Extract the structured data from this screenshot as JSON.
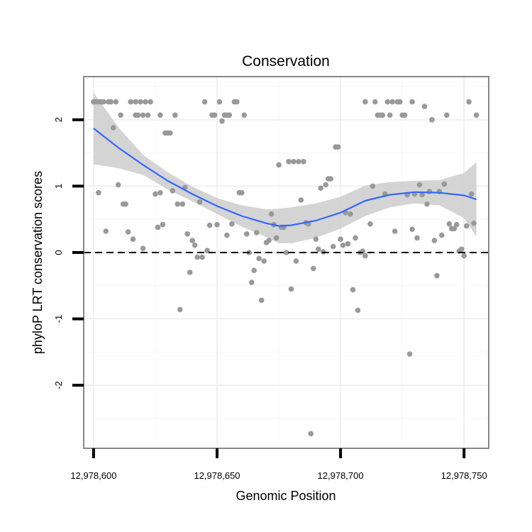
{
  "chart_data": {
    "type": "scatter",
    "title": "Conservation",
    "xlabel": "Genomic Position",
    "ylabel": "phyloP LRT conservation scores",
    "xlim": [
      12978596,
      12978760
    ],
    "ylim": [
      -2.95,
      2.65
    ],
    "x_ticks": [
      12978600,
      12978650,
      12978700,
      12978750
    ],
    "x_tick_labels": [
      "12,978,600",
      "12,978,650",
      "12,978,700",
      "12,978,750"
    ],
    "y_ticks": [
      -2,
      -1,
      0,
      1,
      2
    ],
    "y_tick_labels": [
      "-2",
      "-1",
      "0",
      "1",
      "2"
    ],
    "reference_line": {
      "y": 0,
      "style": "dashed"
    },
    "grid": true,
    "colors": {
      "points": "#999999",
      "smooth_line": "#3366ff",
      "ribbon": "#cccccc",
      "panel_border": "#888888"
    },
    "points": [
      {
        "x": 12978600,
        "y": 2.27
      },
      {
        "x": 12978601,
        "y": 2.27
      },
      {
        "x": 12978602,
        "y": 2.27
      },
      {
        "x": 12978602,
        "y": 0.9
      },
      {
        "x": 12978603,
        "y": 2.27
      },
      {
        "x": 12978604,
        "y": 2.27
      },
      {
        "x": 12978605,
        "y": 0.32
      },
      {
        "x": 12978606,
        "y": 2.27
      },
      {
        "x": 12978607,
        "y": 2.27
      },
      {
        "x": 12978608,
        "y": 1.88
      },
      {
        "x": 12978609,
        "y": 2.27
      },
      {
        "x": 12978610,
        "y": 1.02
      },
      {
        "x": 12978611,
        "y": 2.07
      },
      {
        "x": 12978612,
        "y": 0.73
      },
      {
        "x": 12978613,
        "y": 0.73
      },
      {
        "x": 12978614,
        "y": 0.31
      },
      {
        "x": 12978615,
        "y": 2.27
      },
      {
        "x": 12978616,
        "y": 0.2
      },
      {
        "x": 12978617,
        "y": 2.07
      },
      {
        "x": 12978617,
        "y": 2.27
      },
      {
        "x": 12978618,
        "y": 2.07
      },
      {
        "x": 12978619,
        "y": 2.27
      },
      {
        "x": 12978620,
        "y": 0.06
      },
      {
        "x": 12978620,
        "y": 2.07
      },
      {
        "x": 12978621,
        "y": 2.27
      },
      {
        "x": 12978622,
        "y": 2.07
      },
      {
        "x": 12978623,
        "y": 2.27
      },
      {
        "x": 12978625,
        "y": 0.88
      },
      {
        "x": 12978626,
        "y": 0.38
      },
      {
        "x": 12978627,
        "y": 2.07
      },
      {
        "x": 12978627,
        "y": 0.9
      },
      {
        "x": 12978628,
        "y": 0.42
      },
      {
        "x": 12978629,
        "y": 1.8
      },
      {
        "x": 12978630,
        "y": 1.8
      },
      {
        "x": 12978631,
        "y": 1.8
      },
      {
        "x": 12978632,
        "y": 0.93
      },
      {
        "x": 12978633,
        "y": 2.07
      },
      {
        "x": 12978634,
        "y": 0.73
      },
      {
        "x": 12978635,
        "y": -0.86
      },
      {
        "x": 12978636,
        "y": 0.73
      },
      {
        "x": 12978637,
        "y": 0.98
      },
      {
        "x": 12978638,
        "y": 0.28
      },
      {
        "x": 12978639,
        "y": -0.3
      },
      {
        "x": 12978640,
        "y": 0.18
      },
      {
        "x": 12978641,
        "y": 0.11
      },
      {
        "x": 12978642,
        "y": -0.07
      },
      {
        "x": 12978643,
        "y": 0.76
      },
      {
        "x": 12978644,
        "y": -0.07
      },
      {
        "x": 12978645,
        "y": 2.27
      },
      {
        "x": 12978646,
        "y": 0.03
      },
      {
        "x": 12978647,
        "y": 0.41
      },
      {
        "x": 12978648,
        "y": 2.07
      },
      {
        "x": 12978649,
        "y": 2.07
      },
      {
        "x": 12978650,
        "y": 0.42
      },
      {
        "x": 12978651,
        "y": 2.27
      },
      {
        "x": 12978652,
        "y": 1.98
      },
      {
        "x": 12978653,
        "y": 2.07
      },
      {
        "x": 12978654,
        "y": 2.07
      },
      {
        "x": 12978654,
        "y": 0.26
      },
      {
        "x": 12978655,
        "y": 2.07
      },
      {
        "x": 12978656,
        "y": 0.43
      },
      {
        "x": 12978657,
        "y": 2.27
      },
      {
        "x": 12978658,
        "y": 2.27
      },
      {
        "x": 12978659,
        "y": 0.9
      },
      {
        "x": 12978660,
        "y": 0.9
      },
      {
        "x": 12978661,
        "y": 2.07
      },
      {
        "x": 12978662,
        "y": 0.28
      },
      {
        "x": 12978663,
        "y": 0.0
      },
      {
        "x": 12978664,
        "y": -0.45
      },
      {
        "x": 12978665,
        "y": -0.27
      },
      {
        "x": 12978666,
        "y": 0.3
      },
      {
        "x": 12978667,
        "y": -0.09
      },
      {
        "x": 12978668,
        "y": -0.72
      },
      {
        "x": 12978669,
        "y": -0.13
      },
      {
        "x": 12978670,
        "y": 0.15
      },
      {
        "x": 12978671,
        "y": 0.18
      },
      {
        "x": 12978672,
        "y": 0.58
      },
      {
        "x": 12978673,
        "y": 0.42
      },
      {
        "x": 12978674,
        "y": 0.22
      },
      {
        "x": 12978675,
        "y": 1.32
      },
      {
        "x": 12978676,
        "y": 0.38
      },
      {
        "x": 12978677,
        "y": 0.38
      },
      {
        "x": 12978678,
        "y": 0.0
      },
      {
        "x": 12978679,
        "y": 1.37
      },
      {
        "x": 12978680,
        "y": -0.55
      },
      {
        "x": 12978681,
        "y": 1.37
      },
      {
        "x": 12978682,
        "y": -0.13
      },
      {
        "x": 12978683,
        "y": 1.37
      },
      {
        "x": 12978684,
        "y": 0.79
      },
      {
        "x": 12978685,
        "y": 1.37
      },
      {
        "x": 12978686,
        "y": 0.45
      },
      {
        "x": 12978687,
        "y": 0.43
      },
      {
        "x": 12978688,
        "y": -2.73
      },
      {
        "x": 12978689,
        "y": -0.24
      },
      {
        "x": 12978690,
        "y": 0.2
      },
      {
        "x": 12978691,
        "y": 0.05
      },
      {
        "x": 12978692,
        "y": 0.97
      },
      {
        "x": 12978693,
        "y": 0.01
      },
      {
        "x": 12978694,
        "y": 1.02
      },
      {
        "x": 12978695,
        "y": 1.11
      },
      {
        "x": 12978696,
        "y": 1.11
      },
      {
        "x": 12978697,
        "y": 0.09
      },
      {
        "x": 12978698,
        "y": 1.59
      },
      {
        "x": 12978699,
        "y": 1.59
      },
      {
        "x": 12978700,
        "y": 0.2
      },
      {
        "x": 12978701,
        "y": 0.11
      },
      {
        "x": 12978702,
        "y": 0.6
      },
      {
        "x": 12978703,
        "y": 0.13
      },
      {
        "x": 12978704,
        "y": 0.58
      },
      {
        "x": 12978705,
        "y": -0.56
      },
      {
        "x": 12978706,
        "y": 0.22
      },
      {
        "x": 12978707,
        "y": -0.87
      },
      {
        "x": 12978708,
        "y": 0.0
      },
      {
        "x": 12978709,
        "y": 0.02
      },
      {
        "x": 12978710,
        "y": -0.05
      },
      {
        "x": 12978710,
        "y": 2.27
      },
      {
        "x": 12978712,
        "y": 0.43
      },
      {
        "x": 12978713,
        "y": 1.0
      },
      {
        "x": 12978714,
        "y": 2.27
      },
      {
        "x": 12978715,
        "y": 2.07
      },
      {
        "x": 12978716,
        "y": 2.07
      },
      {
        "x": 12978717,
        "y": 2.07
      },
      {
        "x": 12978718,
        "y": 0.88
      },
      {
        "x": 12978719,
        "y": 2.27
      },
      {
        "x": 12978720,
        "y": 2.07
      },
      {
        "x": 12978721,
        "y": 2.27
      },
      {
        "x": 12978722,
        "y": 0.32
      },
      {
        "x": 12978723,
        "y": 2.27
      },
      {
        "x": 12978724,
        "y": 2.27
      },
      {
        "x": 12978725,
        "y": 2.07
      },
      {
        "x": 12978726,
        "y": 2.07
      },
      {
        "x": 12978727,
        "y": 0.87
      },
      {
        "x": 12978728,
        "y": -1.53
      },
      {
        "x": 12978729,
        "y": 0.35
      },
      {
        "x": 12978729,
        "y": 2.27
      },
      {
        "x": 12978730,
        "y": 0.88
      },
      {
        "x": 12978731,
        "y": 0.22
      },
      {
        "x": 12978732,
        "y": 1.02
      },
      {
        "x": 12978733,
        "y": 0.87
      },
      {
        "x": 12978734,
        "y": 2.2
      },
      {
        "x": 12978735,
        "y": 0.73
      },
      {
        "x": 12978736,
        "y": 0.92
      },
      {
        "x": 12978737,
        "y": 2.0
      },
      {
        "x": 12978738,
        "y": 0.18
      },
      {
        "x": 12978739,
        "y": -0.35
      },
      {
        "x": 12978740,
        "y": 0.92
      },
      {
        "x": 12978741,
        "y": 0.26
      },
      {
        "x": 12978742,
        "y": 1.03
      },
      {
        "x": 12978743,
        "y": 2.07
      },
      {
        "x": 12978744,
        "y": 0.43
      },
      {
        "x": 12978745,
        "y": 0.36
      },
      {
        "x": 12978746,
        "y": 0.36
      },
      {
        "x": 12978747,
        "y": 0.42
      },
      {
        "x": 12978748,
        "y": 0.02
      },
      {
        "x": 12978749,
        "y": 0.05
      },
      {
        "x": 12978750,
        "y": -0.05
      },
      {
        "x": 12978751,
        "y": 0.4
      },
      {
        "x": 12978752,
        "y": 2.27
      },
      {
        "x": 12978753,
        "y": 0.88
      },
      {
        "x": 12978754,
        "y": 0.44
      },
      {
        "x": 12978755,
        "y": 2.07
      }
    ],
    "smooth": {
      "x": [
        12978600,
        12978610,
        12978620,
        12978630,
        12978640,
        12978650,
        12978660,
        12978670,
        12978675,
        12978680,
        12978690,
        12978700,
        12978710,
        12978720,
        12978730,
        12978740,
        12978750,
        12978755
      ],
      "y": [
        1.87,
        1.58,
        1.32,
        1.08,
        0.88,
        0.7,
        0.55,
        0.44,
        0.4,
        0.41,
        0.48,
        0.6,
        0.78,
        0.87,
        0.91,
        0.9,
        0.86,
        0.8
      ],
      "lower": [
        1.33,
        1.27,
        1.17,
        0.95,
        0.77,
        0.58,
        0.39,
        0.23,
        0.14,
        0.14,
        0.22,
        0.36,
        0.55,
        0.68,
        0.74,
        0.71,
        0.52,
        0.24
      ],
      "upper": [
        2.41,
        1.89,
        1.47,
        1.21,
        0.99,
        0.82,
        0.71,
        0.65,
        0.66,
        0.68,
        0.74,
        0.84,
        1.01,
        1.06,
        1.08,
        1.09,
        1.2,
        1.36
      ]
    }
  }
}
